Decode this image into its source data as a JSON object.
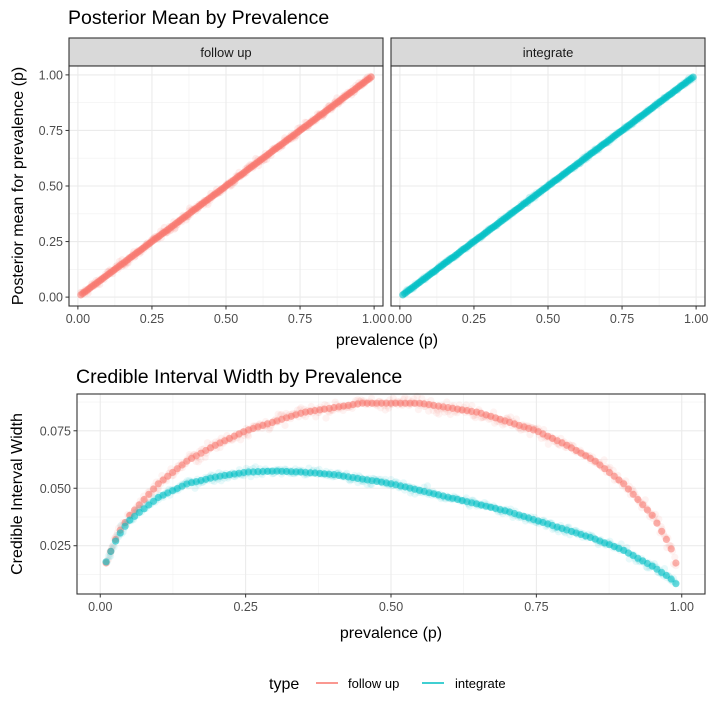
{
  "chart_data": [
    {
      "type": "scatter",
      "title": "Posterior Mean by Prevalence",
      "xlabel": "prevalence (p)",
      "ylabel": "Posterior mean for prevalence (p)",
      "xlim": [
        -0.03,
        1.03
      ],
      "ylim": [
        -0.04,
        1.04
      ],
      "x_ticks": [
        "0.00",
        "0.25",
        "0.50",
        "0.75",
        "1.00"
      ],
      "y_ticks": [
        "0.00",
        "0.25",
        "0.50",
        "0.75",
        "1.00"
      ],
      "grid": true,
      "facets": [
        "follow up",
        "integrate"
      ],
      "series": [
        {
          "name": "follow up",
          "facet": "follow up",
          "color": "#F8766D",
          "x_range": [
            0.01,
            0.99
          ],
          "relation": "y = x",
          "spread_sd": 0.012
        },
        {
          "name": "integrate",
          "facet": "integrate",
          "color": "#00BFC4",
          "x_range": [
            0.01,
            0.99
          ],
          "relation": "y = x",
          "spread_sd": 0.006
        }
      ]
    },
    {
      "type": "scatter",
      "title": "Credible Interval Width by Prevalence",
      "xlabel": "prevalence (p)",
      "ylabel": "Credible Interval Width",
      "xlim": [
        -0.04,
        1.04
      ],
      "ylim": [
        0.004,
        0.091
      ],
      "x_ticks": [
        "0.00",
        "0.25",
        "0.50",
        "0.75",
        "1.00"
      ],
      "y_ticks": [
        "0.025",
        "0.050",
        "0.075"
      ],
      "grid": true,
      "series": [
        {
          "name": "follow up",
          "color": "#F8766D",
          "x": [
            0.01,
            0.03,
            0.05,
            0.1,
            0.15,
            0.2,
            0.25,
            0.3,
            0.35,
            0.4,
            0.45,
            0.5,
            0.55,
            0.6,
            0.65,
            0.7,
            0.75,
            0.8,
            0.85,
            0.9,
            0.95,
            0.98,
            0.99
          ],
          "y": [
            0.0175,
            0.03,
            0.038,
            0.052,
            0.062,
            0.069,
            0.075,
            0.079,
            0.083,
            0.085,
            0.087,
            0.087,
            0.087,
            0.085,
            0.083,
            0.079,
            0.075,
            0.069,
            0.062,
            0.052,
            0.038,
            0.025,
            0.0175
          ]
        },
        {
          "name": "integrate",
          "color": "#00BFC4",
          "x": [
            0.01,
            0.03,
            0.05,
            0.1,
            0.15,
            0.2,
            0.25,
            0.3,
            0.35,
            0.4,
            0.45,
            0.5,
            0.55,
            0.6,
            0.65,
            0.7,
            0.75,
            0.8,
            0.85,
            0.9,
            0.95,
            0.98,
            0.99
          ],
          "y": [
            0.018,
            0.029,
            0.036,
            0.046,
            0.052,
            0.055,
            0.057,
            0.0575,
            0.057,
            0.056,
            0.054,
            0.052,
            0.049,
            0.046,
            0.043,
            0.04,
            0.036,
            0.032,
            0.028,
            0.023,
            0.016,
            0.011,
            0.0085
          ]
        }
      ]
    }
  ],
  "legend": {
    "title": "type",
    "position": "bottom",
    "items": [
      {
        "label": "follow up",
        "color": "#F8766D"
      },
      {
        "label": "integrate",
        "color": "#00BFC4"
      }
    ]
  }
}
